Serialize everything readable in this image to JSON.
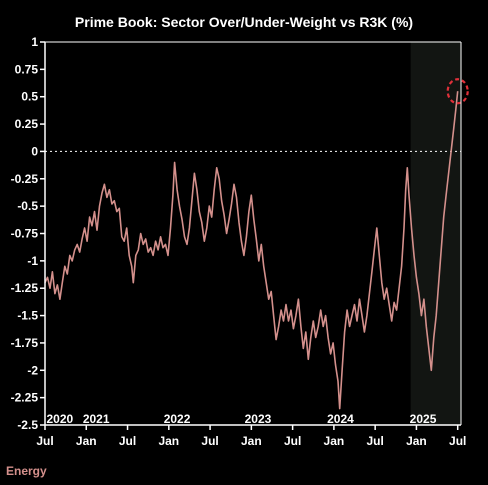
{
  "chart_data": {
    "type": "line",
    "title": "Prime Book: Sector Over/Under-Weight vs R3K (%)",
    "xlabel": "",
    "ylabel": "",
    "ylim": [
      -2.5,
      1
    ],
    "y_ticks": [
      {
        "v": 1,
        "label": "1"
      },
      {
        "v": 0.75,
        "label": "0.75"
      },
      {
        "v": 0.5,
        "label": "0.5"
      },
      {
        "v": 0.25,
        "label": "0.25"
      },
      {
        "v": 0,
        "label": "0"
      },
      {
        "v": -0.25,
        "label": "-0.25"
      },
      {
        "v": -0.5,
        "label": "-0.5"
      },
      {
        "v": -0.75,
        "label": "-0.75"
      },
      {
        "v": -1,
        "label": "-1"
      },
      {
        "v": -1.25,
        "label": "-1.25"
      },
      {
        "v": -1.5,
        "label": "-1.5"
      },
      {
        "v": -1.75,
        "label": "-1.75"
      },
      {
        "v": -2,
        "label": "-2"
      },
      {
        "v": -2.25,
        "label": "-2.25"
      },
      {
        "v": -2.5,
        "label": "-2.5"
      }
    ],
    "xlim": [
      2020.5,
      2025.54
    ],
    "x_month_ticks": [
      {
        "x": 2020.5,
        "label": "Jul"
      },
      {
        "x": 2021.0,
        "label": "Jan"
      },
      {
        "x": 2021.5,
        "label": "Jul"
      },
      {
        "x": 2022.0,
        "label": "Jan"
      },
      {
        "x": 2022.5,
        "label": "Jul"
      },
      {
        "x": 2023.0,
        "label": "Jan"
      },
      {
        "x": 2023.5,
        "label": "Jul"
      },
      {
        "x": 2024.0,
        "label": "Jan"
      },
      {
        "x": 2024.5,
        "label": "Jul"
      },
      {
        "x": 2025.0,
        "label": "Jan"
      },
      {
        "x": 2025.5,
        "label": "Jul"
      }
    ],
    "x_year_labels": [
      {
        "x": 2020.68,
        "label": "2020"
      },
      {
        "x": 2021.12,
        "label": "2021"
      },
      {
        "x": 2022.1,
        "label": "2022"
      },
      {
        "x": 2023.08,
        "label": "2023"
      },
      {
        "x": 2024.08,
        "label": "2024"
      },
      {
        "x": 2025.08,
        "label": "2025"
      }
    ],
    "reference_line": {
      "y": 0,
      "style": "dotted"
    },
    "shaded_region": {
      "x_start": 2024.93,
      "x_end": 2025.54
    },
    "highlight_circle": {
      "x": 2025.5,
      "y": 0.55
    },
    "legend": [
      {
        "name": "Energy",
        "position": "bottom-left"
      }
    ],
    "colors": {
      "line": "#d4908c",
      "background": "#000000",
      "shade": "#121512",
      "circle": "#e0303a",
      "axis": "#ffffff",
      "legend": "#d4908c"
    },
    "series": [
      {
        "name": "Energy",
        "points": [
          [
            2020.5,
            -1.2
          ],
          [
            2020.53,
            -1.15
          ],
          [
            2020.56,
            -1.25
          ],
          [
            2020.59,
            -1.1
          ],
          [
            2020.62,
            -1.3
          ],
          [
            2020.65,
            -1.22
          ],
          [
            2020.68,
            -1.35
          ],
          [
            2020.71,
            -1.2
          ],
          [
            2020.74,
            -1.05
          ],
          [
            2020.77,
            -1.12
          ],
          [
            2020.8,
            -0.95
          ],
          [
            2020.83,
            -1.0
          ],
          [
            2020.86,
            -0.9
          ],
          [
            2020.89,
            -0.85
          ],
          [
            2020.92,
            -0.92
          ],
          [
            2020.95,
            -0.8
          ],
          [
            2020.98,
            -0.7
          ],
          [
            2021.01,
            -0.82
          ],
          [
            2021.04,
            -0.6
          ],
          [
            2021.07,
            -0.68
          ],
          [
            2021.1,
            -0.55
          ],
          [
            2021.13,
            -0.72
          ],
          [
            2021.16,
            -0.5
          ],
          [
            2021.19,
            -0.38
          ],
          [
            2021.22,
            -0.3
          ],
          [
            2021.25,
            -0.42
          ],
          [
            2021.28,
            -0.35
          ],
          [
            2021.31,
            -0.48
          ],
          [
            2021.34,
            -0.45
          ],
          [
            2021.37,
            -0.55
          ],
          [
            2021.4,
            -0.52
          ],
          [
            2021.43,
            -0.78
          ],
          [
            2021.46,
            -0.82
          ],
          [
            2021.49,
            -0.7
          ],
          [
            2021.52,
            -0.95
          ],
          [
            2021.55,
            -1.05
          ],
          [
            2021.57,
            -1.2
          ],
          [
            2021.6,
            -0.95
          ],
          [
            2021.63,
            -0.9
          ],
          [
            2021.66,
            -0.75
          ],
          [
            2021.69,
            -0.85
          ],
          [
            2021.72,
            -0.8
          ],
          [
            2021.75,
            -0.92
          ],
          [
            2021.78,
            -0.88
          ],
          [
            2021.81,
            -0.95
          ],
          [
            2021.84,
            -0.82
          ],
          [
            2021.87,
            -0.9
          ],
          [
            2021.9,
            -0.78
          ],
          [
            2021.93,
            -0.88
          ],
          [
            2021.96,
            -0.85
          ],
          [
            2021.99,
            -0.95
          ],
          [
            2022.02,
            -0.7
          ],
          [
            2022.05,
            -0.4
          ],
          [
            2022.07,
            -0.1
          ],
          [
            2022.1,
            -0.35
          ],
          [
            2022.13,
            -0.5
          ],
          [
            2022.16,
            -0.62
          ],
          [
            2022.19,
            -0.78
          ],
          [
            2022.22,
            -0.85
          ],
          [
            2022.25,
            -0.7
          ],
          [
            2022.28,
            -0.45
          ],
          [
            2022.31,
            -0.2
          ],
          [
            2022.34,
            -0.35
          ],
          [
            2022.37,
            -0.55
          ],
          [
            2022.4,
            -0.65
          ],
          [
            2022.43,
            -0.82
          ],
          [
            2022.46,
            -0.7
          ],
          [
            2022.49,
            -0.5
          ],
          [
            2022.52,
            -0.6
          ],
          [
            2022.55,
            -0.35
          ],
          [
            2022.58,
            -0.15
          ],
          [
            2022.61,
            -0.25
          ],
          [
            2022.64,
            -0.45
          ],
          [
            2022.67,
            -0.58
          ],
          [
            2022.7,
            -0.75
          ],
          [
            2022.73,
            -0.62
          ],
          [
            2022.76,
            -0.48
          ],
          [
            2022.79,
            -0.3
          ],
          [
            2022.82,
            -0.42
          ],
          [
            2022.85,
            -0.65
          ],
          [
            2022.88,
            -0.82
          ],
          [
            2022.91,
            -0.95
          ],
          [
            2022.94,
            -0.78
          ],
          [
            2022.97,
            -0.55
          ],
          [
            2023.0,
            -0.4
          ],
          [
            2023.03,
            -0.62
          ],
          [
            2023.06,
            -0.8
          ],
          [
            2023.09,
            -1.0
          ],
          [
            2023.12,
            -0.85
          ],
          [
            2023.15,
            -1.05
          ],
          [
            2023.18,
            -1.2
          ],
          [
            2023.21,
            -1.35
          ],
          [
            2023.24,
            -1.28
          ],
          [
            2023.27,
            -1.5
          ],
          [
            2023.3,
            -1.72
          ],
          [
            2023.33,
            -1.6
          ],
          [
            2023.36,
            -1.45
          ],
          [
            2023.39,
            -1.55
          ],
          [
            2023.42,
            -1.4
          ],
          [
            2023.45,
            -1.55
          ],
          [
            2023.48,
            -1.45
          ],
          [
            2023.51,
            -1.62
          ],
          [
            2023.54,
            -1.5
          ],
          [
            2023.57,
            -1.35
          ],
          [
            2023.6,
            -1.6
          ],
          [
            2023.63,
            -1.8
          ],
          [
            2023.66,
            -1.65
          ],
          [
            2023.69,
            -1.9
          ],
          [
            2023.72,
            -1.7
          ],
          [
            2023.75,
            -1.55
          ],
          [
            2023.78,
            -1.7
          ],
          [
            2023.81,
            -1.6
          ],
          [
            2023.84,
            -1.45
          ],
          [
            2023.87,
            -1.6
          ],
          [
            2023.9,
            -1.5
          ],
          [
            2023.93,
            -1.7
          ],
          [
            2023.96,
            -1.85
          ],
          [
            2023.99,
            -1.75
          ],
          [
            2024.02,
            -1.95
          ],
          [
            2024.05,
            -2.1
          ],
          [
            2024.07,
            -2.35
          ],
          [
            2024.1,
            -2.0
          ],
          [
            2024.13,
            -1.65
          ],
          [
            2024.16,
            -1.45
          ],
          [
            2024.19,
            -1.6
          ],
          [
            2024.22,
            -1.5
          ],
          [
            2024.25,
            -1.4
          ],
          [
            2024.28,
            -1.55
          ],
          [
            2024.31,
            -1.35
          ],
          [
            2024.34,
            -1.5
          ],
          [
            2024.37,
            -1.65
          ],
          [
            2024.4,
            -1.5
          ],
          [
            2024.43,
            -1.3
          ],
          [
            2024.46,
            -1.1
          ],
          [
            2024.49,
            -0.9
          ],
          [
            2024.52,
            -0.7
          ],
          [
            2024.55,
            -0.95
          ],
          [
            2024.58,
            -1.2
          ],
          [
            2024.61,
            -1.35
          ],
          [
            2024.64,
            -1.25
          ],
          [
            2024.67,
            -1.4
          ],
          [
            2024.7,
            -1.55
          ],
          [
            2024.73,
            -1.38
          ],
          [
            2024.76,
            -1.45
          ],
          [
            2024.79,
            -1.25
          ],
          [
            2024.82,
            -1.05
          ],
          [
            2024.85,
            -0.7
          ],
          [
            2024.87,
            -0.35
          ],
          [
            2024.89,
            -0.15
          ],
          [
            2024.91,
            -0.4
          ],
          [
            2024.94,
            -0.7
          ],
          [
            2024.97,
            -0.95
          ],
          [
            2025.0,
            -1.15
          ],
          [
            2025.03,
            -1.3
          ],
          [
            2025.06,
            -1.5
          ],
          [
            2025.09,
            -1.35
          ],
          [
            2025.12,
            -1.6
          ],
          [
            2025.15,
            -1.8
          ],
          [
            2025.18,
            -2.0
          ],
          [
            2025.21,
            -1.7
          ],
          [
            2025.24,
            -1.5
          ],
          [
            2025.27,
            -1.2
          ],
          [
            2025.3,
            -0.9
          ],
          [
            2025.33,
            -0.6
          ],
          [
            2025.36,
            -0.4
          ],
          [
            2025.39,
            -0.2
          ],
          [
            2025.42,
            0.0
          ],
          [
            2025.45,
            0.2
          ],
          [
            2025.48,
            0.4
          ],
          [
            2025.5,
            0.55
          ]
        ]
      }
    ]
  }
}
